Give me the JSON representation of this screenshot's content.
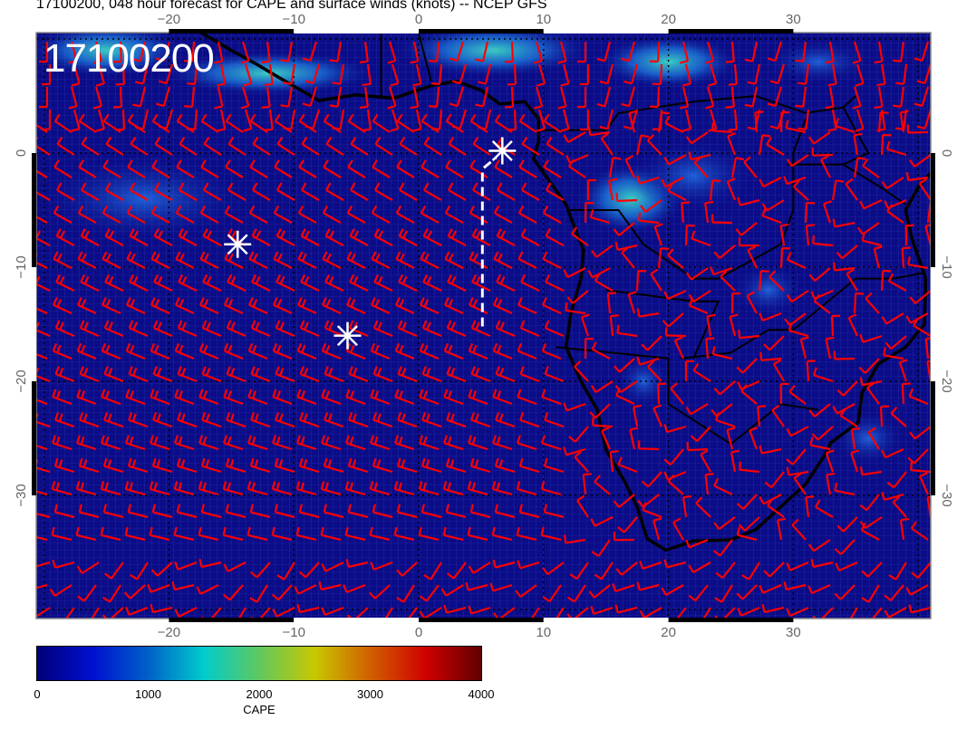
{
  "title": "17100200, 048 hour forecast for CAPE and surface winds (knots) -- NCEP GFS",
  "stamp": "17100200",
  "map": {
    "lon_range": [
      -30.7,
      41
    ],
    "lat_range": [
      10.5,
      -41
    ],
    "lon_ticks": [
      "−20",
      "−10",
      "0",
      "10",
      "20",
      "30"
    ],
    "lon_tick_values": [
      -20,
      -10,
      0,
      10,
      20,
      30
    ],
    "lat_ticks": [
      "0",
      "−10",
      "−20",
      "−30"
    ],
    "lat_tick_values": [
      0,
      -10,
      -20,
      -30
    ],
    "background_color": "#0a0c88",
    "barb_color": "#ff0000",
    "coast_color": "#000000",
    "markers": [
      {
        "lon": -14.5,
        "lat": -8.0
      },
      {
        "lon": -5.7,
        "lat": -16.0
      },
      {
        "lon": 6.7,
        "lat": 0.2
      }
    ],
    "track": [
      [
        5.1,
        -15.2
      ],
      [
        5.1,
        -1.4
      ],
      [
        6.2,
        -0.4
      ]
    ]
  },
  "colorbar": {
    "label": "CAPE",
    "ticks": [
      "0",
      "1000",
      "2000",
      "3000",
      "4000"
    ],
    "tick_values": [
      0,
      1000,
      2000,
      3000,
      4000
    ],
    "colors": [
      "#00007a",
      "#0010d0",
      "#0060c8",
      "#00cccc",
      "#60c860",
      "#c8c800",
      "#d06000",
      "#d00000",
      "#600000"
    ]
  }
}
